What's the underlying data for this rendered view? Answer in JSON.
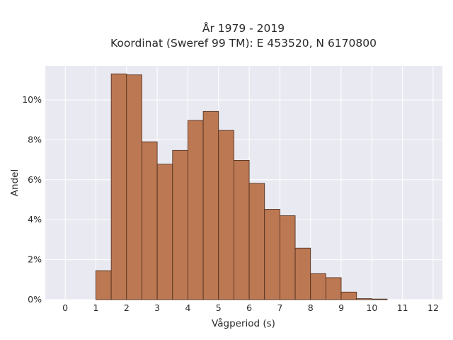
{
  "chart_data": {
    "type": "bar",
    "title": "År 1979 - 2019",
    "subtitle": "Koordinat (Sweref 99 TM): E 453520, N 6170800",
    "xlabel": "Vågperiod (s)",
    "ylabel": "Andel",
    "bin_width": 0.5,
    "xlim": [
      -0.65,
      12.3
    ],
    "ylim": [
      0,
      11.7
    ],
    "x_ticks": [
      0,
      1,
      2,
      3,
      4,
      5,
      6,
      7,
      8,
      9,
      10,
      11,
      12
    ],
    "x_tick_labels": [
      "0",
      "1",
      "2",
      "3",
      "4",
      "5",
      "6",
      "7",
      "8",
      "9",
      "10",
      "11",
      "12"
    ],
    "y_ticks": [
      0,
      2,
      4,
      6,
      8,
      10
    ],
    "y_tick_labels": [
      "0%",
      "2%",
      "4%",
      "6%",
      "8%",
      "10%"
    ],
    "grid": true,
    "bins": [
      {
        "start": 0.0,
        "value": 0.0
      },
      {
        "start": 0.5,
        "value": 0.0
      },
      {
        "start": 1.0,
        "value": 1.45
      },
      {
        "start": 1.5,
        "value": 11.3
      },
      {
        "start": 2.0,
        "value": 11.25
      },
      {
        "start": 2.5,
        "value": 7.9
      },
      {
        "start": 3.0,
        "value": 6.78
      },
      {
        "start": 3.5,
        "value": 7.47
      },
      {
        "start": 4.0,
        "value": 8.97
      },
      {
        "start": 4.5,
        "value": 9.42
      },
      {
        "start": 5.0,
        "value": 8.47
      },
      {
        "start": 5.5,
        "value": 6.97
      },
      {
        "start": 6.0,
        "value": 5.82
      },
      {
        "start": 6.5,
        "value": 4.52
      },
      {
        "start": 7.0,
        "value": 4.2
      },
      {
        "start": 7.5,
        "value": 2.58
      },
      {
        "start": 8.0,
        "value": 1.3
      },
      {
        "start": 8.5,
        "value": 1.1
      },
      {
        "start": 9.0,
        "value": 0.38
      },
      {
        "start": 9.5,
        "value": 0.05
      },
      {
        "start": 10.0,
        "value": 0.03
      },
      {
        "start": 10.5,
        "value": 0.0
      },
      {
        "start": 11.0,
        "value": 0.0
      },
      {
        "start": 11.5,
        "value": 0.0
      }
    ]
  },
  "colors": {
    "background": "#ffffff",
    "plot_background": "#e9e9f1",
    "grid": "#ffffff",
    "bar_fill": "#bb7852",
    "bar_stroke": "#4a2a1a",
    "text": "#2a2a2a"
  }
}
